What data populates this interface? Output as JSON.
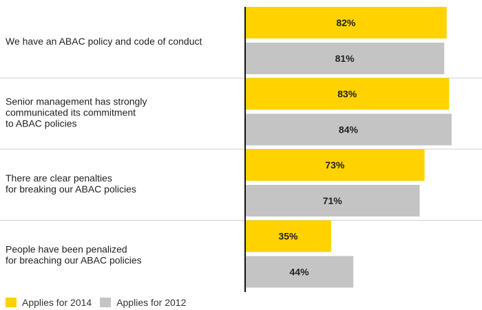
{
  "chart_data": {
    "type": "bar",
    "orientation": "horizontal",
    "categories": [
      [
        "We have an ABAC policy and code of conduct"
      ],
      [
        "Senior management has strongly",
        "communicated its commitment",
        "to ABAC policies"
      ],
      [
        "There are clear penalties",
        "for breaking our ABAC policies"
      ],
      [
        "People have been penalized",
        "for breaching our ABAC policies"
      ]
    ],
    "series": [
      {
        "name": "Applies for 2014",
        "color": "#FFD200",
        "values": [
          82,
          83,
          73,
          35
        ],
        "labels": [
          "82%",
          "83%",
          "73%",
          "35%"
        ]
      },
      {
        "name": "Applies for 2012",
        "color": "#C4C4C4",
        "values": [
          81,
          84,
          71,
          44
        ],
        "labels": [
          "81%",
          "84%",
          "71%",
          "44%"
        ]
      }
    ],
    "xlim": [
      0,
      100
    ],
    "grid": false,
    "legend_position": "bottom-left"
  }
}
